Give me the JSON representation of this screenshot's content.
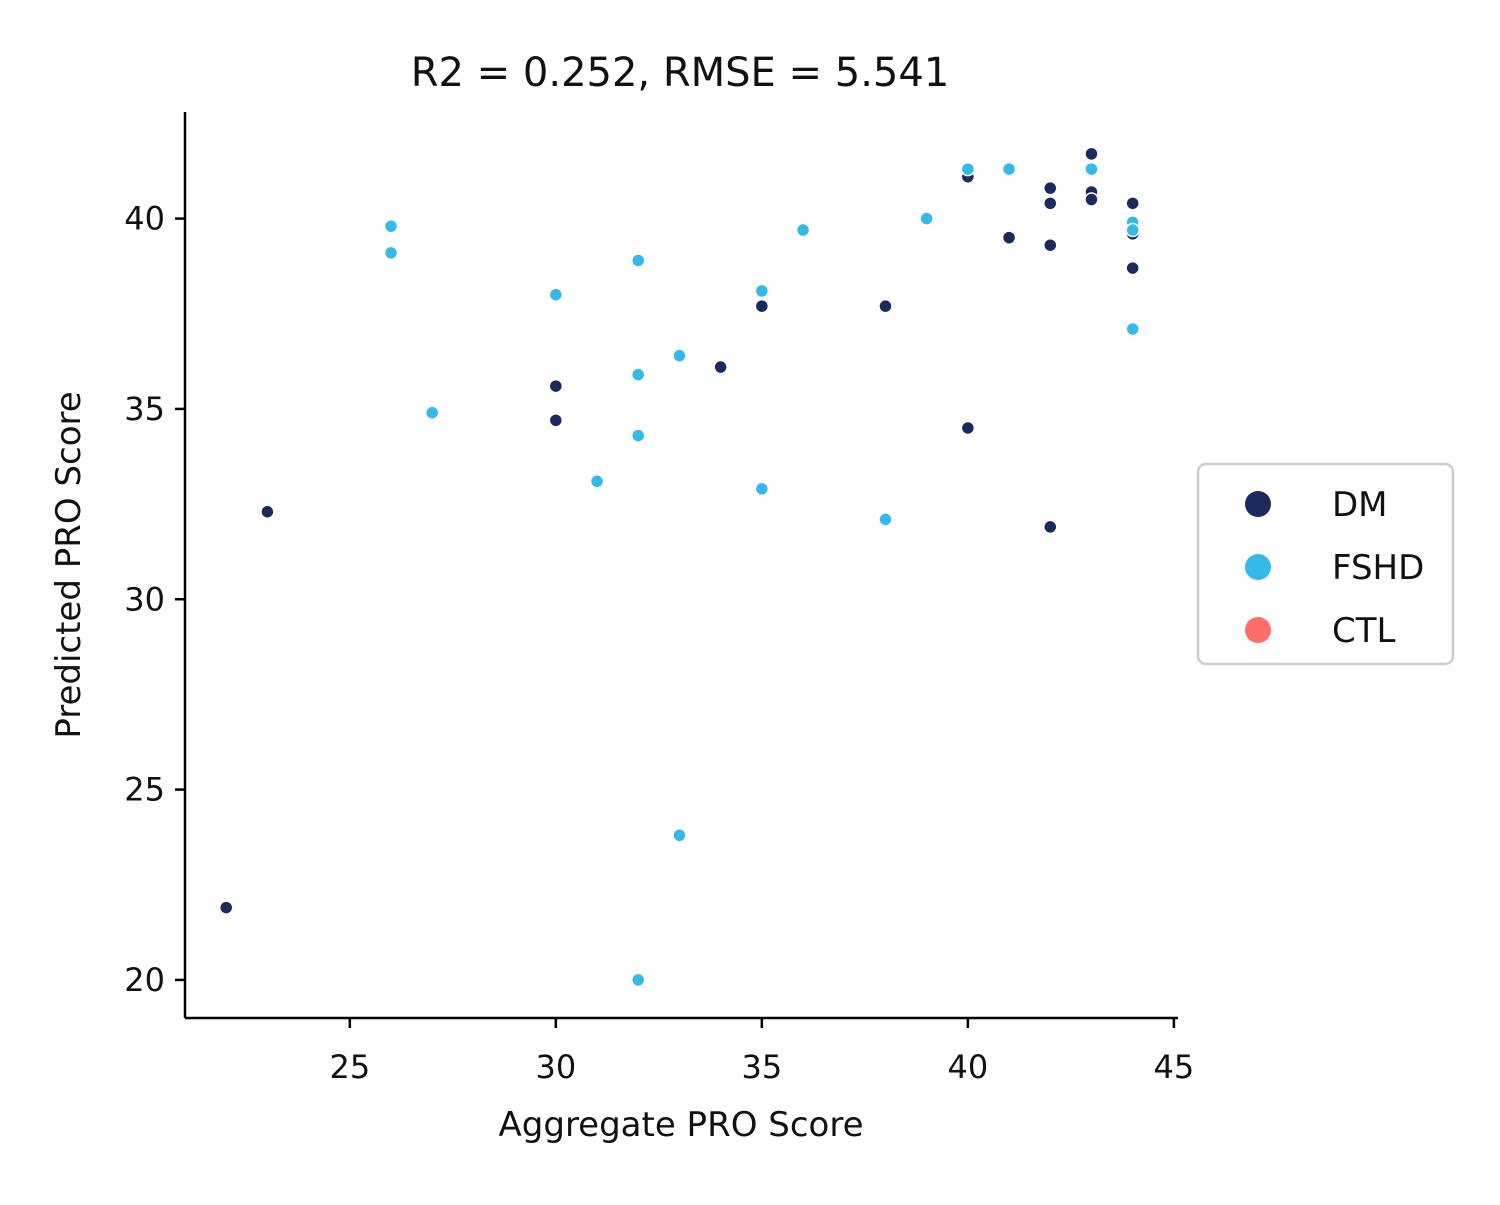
{
  "chart_data": {
    "type": "scatter",
    "title": "R2 = 0.252, RMSE = 5.541",
    "xlabel": "Aggregate PRO Score",
    "ylabel": "Predicted PRO Score",
    "xlim": [
      21,
      45.1
    ],
    "ylim": [
      19.0,
      42.8
    ],
    "xticks": [
      "25",
      "30",
      "35",
      "40",
      "45"
    ],
    "yticks": [
      "20",
      "25",
      "30",
      "35",
      "40"
    ],
    "legend_position": "right",
    "series": [
      {
        "name": "DM",
        "color": "#1b2a5c",
        "points": [
          [
            22,
            21.9
          ],
          [
            23,
            32.3
          ],
          [
            30,
            35.6
          ],
          [
            30,
            34.7
          ],
          [
            34,
            36.1
          ],
          [
            35,
            37.7
          ],
          [
            38,
            37.7
          ],
          [
            40,
            41.1
          ],
          [
            40,
            34.5
          ],
          [
            41,
            39.5
          ],
          [
            42,
            40.8
          ],
          [
            42,
            40.4
          ],
          [
            42,
            39.3
          ],
          [
            42,
            31.9
          ],
          [
            43,
            41.7
          ],
          [
            43,
            40.7
          ],
          [
            43,
            40.5
          ],
          [
            44,
            40.4
          ],
          [
            44,
            39.6
          ],
          [
            44,
            38.7
          ]
        ]
      },
      {
        "name": "FSHD",
        "color": "#35b9e9",
        "points": [
          [
            26,
            39.8
          ],
          [
            26,
            39.1
          ],
          [
            27,
            34.9
          ],
          [
            30,
            38.0
          ],
          [
            31,
            33.1
          ],
          [
            32,
            38.9
          ],
          [
            32,
            35.9
          ],
          [
            32,
            34.3
          ],
          [
            32,
            20.0
          ],
          [
            33,
            36.4
          ],
          [
            33,
            23.8
          ],
          [
            35,
            38.1
          ],
          [
            35,
            32.9
          ],
          [
            36,
            39.7
          ],
          [
            38,
            32.1
          ],
          [
            39,
            40.0
          ],
          [
            40,
            41.3
          ],
          [
            41,
            41.3
          ],
          [
            43,
            41.3
          ],
          [
            44,
            39.9
          ],
          [
            44,
            39.7
          ],
          [
            44,
            37.1
          ]
        ]
      },
      {
        "name": "CTL",
        "color": "#ff6f6a",
        "points": []
      }
    ]
  }
}
